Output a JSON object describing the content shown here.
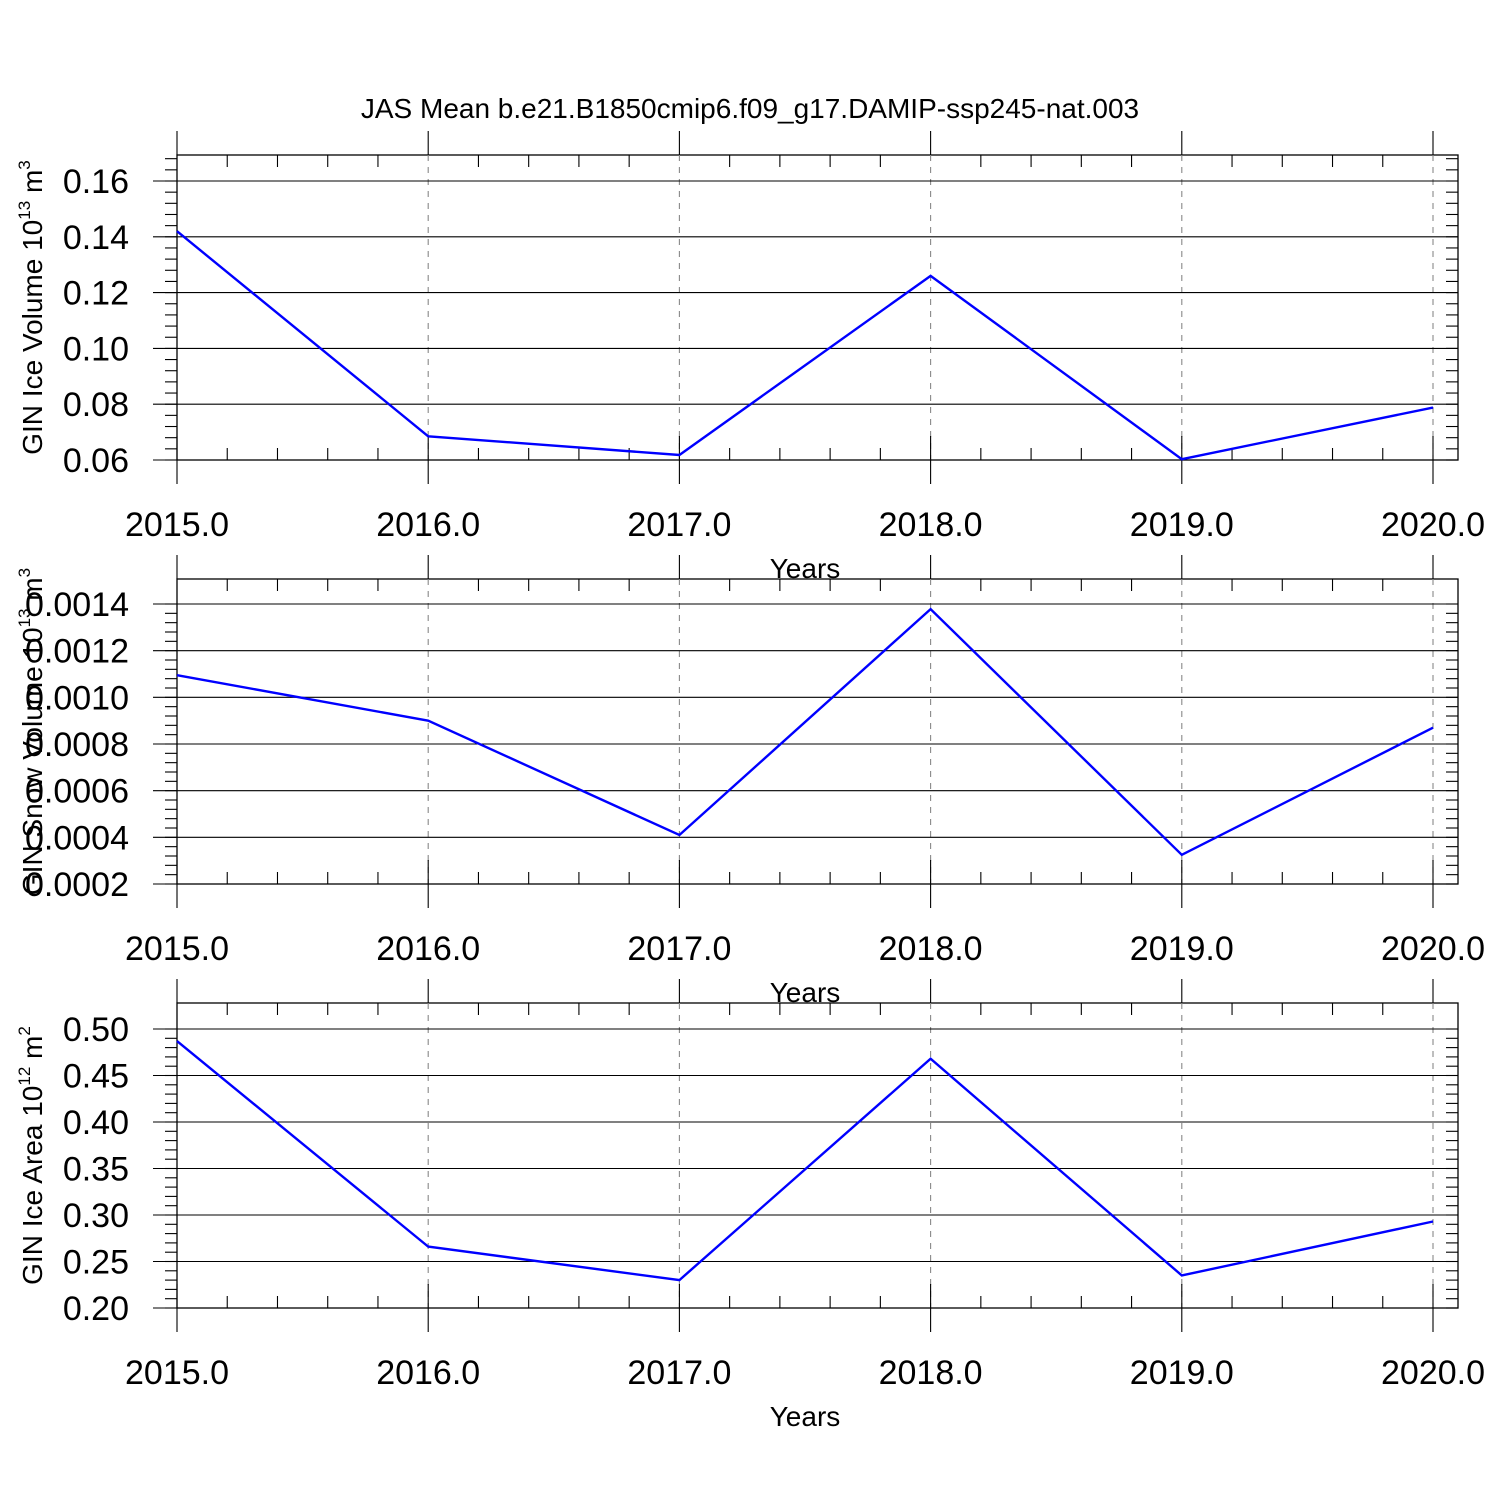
{
  "title": "JAS Mean b.e21.B1850cmip6.f09_g17.DAMIP-ssp245-nat.003",
  "colors": {
    "series": "#0000ff",
    "grid": "#888888",
    "axes": "#000000"
  },
  "chart_data": [
    {
      "type": "line",
      "xlabel": "Years",
      "ylabel": "GIN Ice Volume 10",
      "ylabel_sup": "13",
      "ylabel_unit": " m",
      "ylabel_unit_sup": "3",
      "xlim": [
        2015,
        2020.1
      ],
      "ylim": [
        0.06,
        0.17
      ],
      "x_ticks": [
        2015,
        2016,
        2017,
        2018,
        2019,
        2020
      ],
      "x_tick_labels": [
        "2015.0",
        "2016.0",
        "2017.0",
        "2018.0",
        "2019.0",
        "2020.0"
      ],
      "y_ticks": [
        0.06,
        0.08,
        0.1,
        0.12,
        0.14,
        0.16
      ],
      "y_tick_labels": [
        "0.06",
        "0.08",
        "0.10",
        "0.12",
        "0.14",
        "0.16"
      ],
      "y_minor_step": 0.004,
      "grid": "vertical-dashed",
      "x": [
        2015,
        2016,
        2017,
        2018,
        2019,
        2020
      ],
      "y": [
        0.142,
        0.0685,
        0.0618,
        0.126,
        0.0603,
        0.0788
      ]
    },
    {
      "type": "line",
      "xlabel": "Years",
      "ylabel": "GIN Snow Volume 10",
      "ylabel_sup": "13",
      "ylabel_unit": " m",
      "ylabel_unit_sup": "3",
      "xlim": [
        2015,
        2020.1
      ],
      "ylim": [
        0.0002,
        0.00141
      ],
      "x_ticks": [
        2015,
        2016,
        2017,
        2018,
        2019,
        2020
      ],
      "x_tick_labels": [
        "2015.0",
        "2016.0",
        "2017.0",
        "2018.0",
        "2019.0",
        "2020.0"
      ],
      "y_ticks": [
        0.0002,
        0.0004,
        0.0006,
        0.0008,
        0.001,
        0.0012,
        0.0014
      ],
      "y_tick_labels": [
        "0.0002",
        "0.0004",
        "0.0006",
        "0.0008",
        "0.0010",
        "0.0012",
        "0.0014"
      ],
      "y_minor_step": 4e-05,
      "grid": "vertical-dashed",
      "x": [
        2015,
        2016,
        2017,
        2018,
        2019,
        2020
      ],
      "y": [
        0.001095,
        0.0009,
        0.00041,
        0.001378,
        0.000325,
        0.00087
      ]
    },
    {
      "type": "line",
      "xlabel": "Years",
      "ylabel": "GIN Ice Area 10",
      "ylabel_sup": "12",
      "ylabel_unit": " m",
      "ylabel_unit_sup": "2",
      "xlim": [
        2015,
        2020.1
      ],
      "ylim": [
        0.2,
        0.5
      ],
      "x_ticks": [
        2015,
        2016,
        2017,
        2018,
        2019,
        2020
      ],
      "x_tick_labels": [
        "2015.0",
        "2016.0",
        "2017.0",
        "2018.0",
        "2019.0",
        "2020.0"
      ],
      "y_ticks": [
        0.2,
        0.25,
        0.3,
        0.35,
        0.4,
        0.45,
        0.5
      ],
      "y_tick_labels": [
        "0.20",
        "0.25",
        "0.30",
        "0.35",
        "0.40",
        "0.45",
        "0.50"
      ],
      "y_minor_step": 0.01,
      "grid": "vertical-dashed",
      "x": [
        2015,
        2016,
        2017,
        2018,
        2019,
        2020
      ],
      "y": [
        0.487,
        0.266,
        0.23,
        0.468,
        0.235,
        0.293
      ]
    }
  ]
}
